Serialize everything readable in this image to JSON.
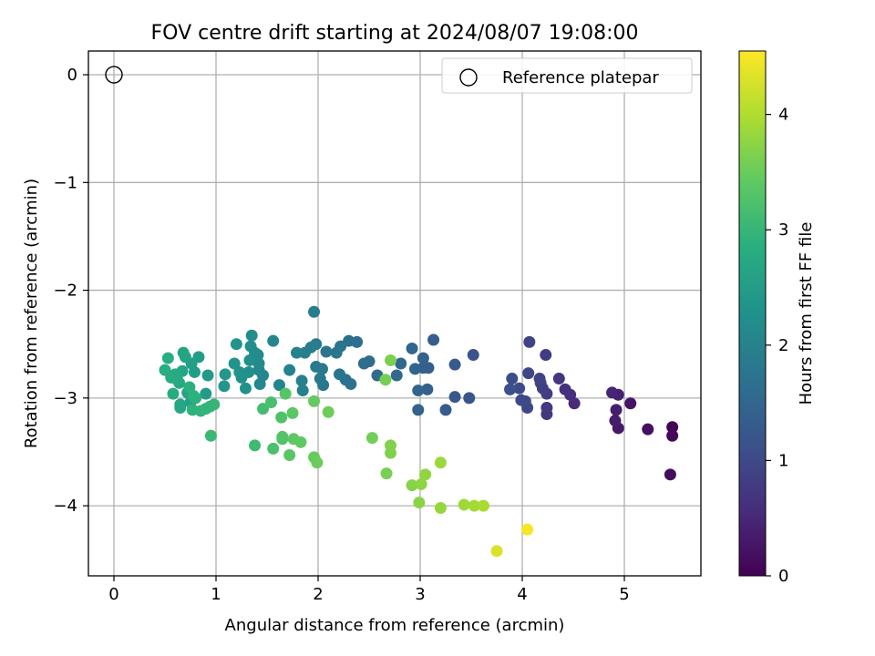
{
  "chart_data": {
    "type": "scatter",
    "title": "FOV centre drift starting at 2024/08/07 19:08:00",
    "xlabel": "Angular distance from reference (arcmin)",
    "ylabel": "Rotation from reference (arcmin)",
    "xlim": [
      -0.25,
      5.75
    ],
    "ylim": [
      -4.65,
      0.22
    ],
    "x_ticks": [
      0,
      1,
      2,
      3,
      4,
      5
    ],
    "y_ticks": [
      0,
      -1,
      -2,
      -3,
      -4
    ],
    "x_tick_labels": [
      "0",
      "1",
      "2",
      "3",
      "4",
      "5"
    ],
    "y_tick_labels": [
      "0",
      "−1",
      "−2",
      "−3",
      "−4"
    ],
    "grid": true,
    "legend": {
      "position": "top-right",
      "entries": [
        "Reference platepar"
      ]
    },
    "reference_point": {
      "x": 0,
      "y": 0,
      "marker": "open-circle"
    },
    "colorbar": {
      "label": "Hours from first FF file",
      "range": [
        0,
        4.55
      ],
      "ticks": [
        0,
        1,
        2,
        3,
        4
      ],
      "tick_labels": [
        "0",
        "1",
        "2",
        "3",
        "4"
      ],
      "colormap": "viridis"
    },
    "series": [
      {
        "points": [
          [
            5.47,
            -3.27,
            0.05
          ],
          [
            5.47,
            -3.35,
            0.1
          ],
          [
            5.45,
            -3.71,
            0.15
          ],
          [
            5.23,
            -3.29,
            0.2
          ],
          [
            5.06,
            -3.05,
            0.25
          ],
          [
            4.94,
            -3.28,
            0.3
          ],
          [
            4.91,
            -3.21,
            0.35
          ],
          [
            4.92,
            -3.11,
            0.38
          ],
          [
            4.94,
            -2.97,
            0.42
          ],
          [
            4.88,
            -2.95,
            0.46
          ],
          [
            4.51,
            -3.05,
            0.55
          ],
          [
            4.47,
            -2.97,
            0.6
          ],
          [
            4.42,
            -2.92,
            0.65
          ],
          [
            4.36,
            -2.82,
            0.7
          ],
          [
            4.24,
            -3.15,
            0.72
          ],
          [
            4.24,
            -3.09,
            0.76
          ],
          [
            4.24,
            -2.96,
            0.8
          ],
          [
            4.23,
            -2.6,
            0.82
          ],
          [
            4.2,
            -2.91,
            0.85
          ],
          [
            4.18,
            -2.86,
            0.88
          ],
          [
            4.17,
            -2.82,
            0.9
          ],
          [
            4.07,
            -2.48,
            0.92
          ],
          [
            4.06,
            -2.77,
            0.95
          ],
          [
            4.05,
            -3.09,
            0.98
          ],
          [
            4.03,
            -3.03,
            1.0
          ],
          [
            3.99,
            -3.02,
            1.02
          ],
          [
            3.97,
            -2.91,
            1.05
          ],
          [
            3.9,
            -2.82,
            1.07
          ],
          [
            3.88,
            -2.92,
            1.1
          ],
          [
            3.52,
            -2.6,
            1.15
          ],
          [
            3.48,
            -3.0,
            1.2
          ],
          [
            3.34,
            -2.99,
            1.25
          ],
          [
            3.34,
            -2.69,
            1.28
          ],
          [
            3.25,
            -3.11,
            1.3
          ],
          [
            3.13,
            -2.46,
            1.33
          ],
          [
            3.08,
            -2.72,
            1.36
          ],
          [
            3.07,
            -2.92,
            1.38
          ],
          [
            3.03,
            -2.72,
            1.4
          ],
          [
            3.03,
            -2.63,
            1.42
          ],
          [
            2.98,
            -3.11,
            1.44
          ],
          [
            2.98,
            -2.93,
            1.46
          ],
          [
            2.95,
            -2.73,
            1.48
          ],
          [
            2.92,
            -2.54,
            1.5
          ],
          [
            2.81,
            -2.68,
            1.53
          ],
          [
            2.77,
            -2.79,
            1.56
          ],
          [
            2.58,
            -2.79,
            1.58
          ],
          [
            2.5,
            -2.66,
            1.6
          ],
          [
            2.45,
            -2.68,
            1.62
          ],
          [
            2.38,
            -2.48,
            1.64
          ],
          [
            2.3,
            -2.47,
            1.66
          ],
          [
            2.32,
            -2.87,
            1.68
          ],
          [
            2.27,
            -2.83,
            1.7
          ],
          [
            2.22,
            -2.52,
            1.72
          ],
          [
            2.21,
            -2.78,
            1.74
          ],
          [
            2.18,
            -2.58,
            1.76
          ],
          [
            2.08,
            -2.57,
            1.78
          ],
          [
            2.05,
            -2.88,
            1.8
          ],
          [
            2.04,
            -2.73,
            1.82
          ],
          [
            2.02,
            -2.82,
            1.84
          ],
          [
            1.98,
            -2.71,
            1.86
          ],
          [
            1.98,
            -2.5,
            1.88
          ],
          [
            1.96,
            -2.2,
            1.9
          ],
          [
            1.93,
            -2.53,
            1.92
          ],
          [
            1.87,
            -2.58,
            1.94
          ],
          [
            1.85,
            -2.93,
            1.96
          ],
          [
            1.84,
            -2.84,
            1.98
          ],
          [
            1.79,
            -2.58,
            2.0
          ],
          [
            1.72,
            -2.74,
            2.02
          ],
          [
            1.62,
            -2.88,
            2.04
          ],
          [
            1.56,
            -2.47,
            2.06
          ],
          [
            1.46,
            -2.79,
            2.08
          ],
          [
            1.43,
            -2.87,
            2.1
          ],
          [
            1.42,
            -2.74,
            2.12
          ],
          [
            1.42,
            -2.68,
            2.14
          ],
          [
            1.41,
            -2.6,
            2.16
          ],
          [
            1.38,
            -2.58,
            2.18
          ],
          [
            1.35,
            -2.42,
            2.2
          ],
          [
            1.34,
            -2.52,
            2.22
          ],
          [
            1.33,
            -2.65,
            2.24
          ],
          [
            1.32,
            -2.76,
            2.26
          ],
          [
            1.29,
            -2.91,
            2.28
          ],
          [
            1.25,
            -2.81,
            2.3
          ],
          [
            1.23,
            -2.76,
            2.32
          ],
          [
            1.2,
            -2.5,
            2.34
          ],
          [
            1.18,
            -2.68,
            2.36
          ],
          [
            1.08,
            -2.89,
            2.38
          ],
          [
            1.09,
            -2.78,
            2.4
          ],
          [
            0.92,
            -2.79,
            2.45
          ],
          [
            0.9,
            -2.96,
            2.48
          ],
          [
            0.83,
            -2.62,
            2.5
          ],
          [
            0.79,
            -2.76,
            2.52
          ],
          [
            0.76,
            -2.68,
            2.55
          ],
          [
            0.75,
            -3.04,
            2.58
          ],
          [
            0.72,
            -2.95,
            2.6
          ],
          [
            0.7,
            -2.62,
            2.62
          ],
          [
            0.68,
            -2.58,
            2.64
          ],
          [
            0.67,
            -2.75,
            2.66
          ],
          [
            0.65,
            -3.06,
            2.68
          ],
          [
            0.65,
            -3.09,
            2.7
          ],
          [
            0.64,
            -2.86,
            2.72
          ],
          [
            0.62,
            -2.83,
            2.74
          ],
          [
            0.6,
            -2.78,
            2.76
          ],
          [
            0.58,
            -2.96,
            2.78
          ],
          [
            0.56,
            -2.81,
            2.8
          ],
          [
            0.53,
            -2.63,
            2.82
          ],
          [
            0.5,
            -2.74,
            2.84
          ],
          [
            0.74,
            -2.9,
            2.86
          ],
          [
            0.78,
            -2.98,
            2.88
          ],
          [
            0.8,
            -3.0,
            2.9
          ],
          [
            0.77,
            -3.11,
            2.92
          ],
          [
            0.85,
            -3.12,
            2.94
          ],
          [
            0.9,
            -3.1,
            2.96
          ],
          [
            0.94,
            -3.08,
            2.98
          ],
          [
            0.98,
            -3.06,
            3.0
          ],
          [
            0.95,
            -3.35,
            3.05
          ],
          [
            1.38,
            -3.44,
            3.1
          ],
          [
            1.46,
            -3.1,
            3.15
          ],
          [
            1.54,
            -3.04,
            3.18
          ],
          [
            1.56,
            -3.47,
            3.22
          ],
          [
            1.64,
            -3.18,
            3.25
          ],
          [
            1.65,
            -3.38,
            3.28
          ],
          [
            1.65,
            -3.36,
            3.3
          ],
          [
            1.68,
            -2.96,
            3.32
          ],
          [
            1.72,
            -3.53,
            3.35
          ],
          [
            1.75,
            -3.14,
            3.38
          ],
          [
            1.76,
            -3.38,
            3.4
          ],
          [
            1.83,
            -3.41,
            3.42
          ],
          [
            1.96,
            -3.03,
            3.45
          ],
          [
            1.96,
            -3.55,
            3.48
          ],
          [
            1.99,
            -3.6,
            3.5
          ],
          [
            2.1,
            -3.13,
            3.52
          ],
          [
            2.53,
            -3.37,
            3.55
          ],
          [
            2.66,
            -2.83,
            3.58
          ],
          [
            2.67,
            -3.7,
            3.6
          ],
          [
            2.71,
            -2.65,
            3.62
          ],
          [
            2.71,
            -3.51,
            3.65
          ],
          [
            2.71,
            -3.44,
            3.68
          ],
          [
            2.92,
            -3.81,
            3.7
          ],
          [
            2.99,
            -3.97,
            3.73
          ],
          [
            3.01,
            -3.8,
            3.76
          ],
          [
            3.05,
            -3.71,
            3.78
          ],
          [
            3.2,
            -4.02,
            3.82
          ],
          [
            3.2,
            -3.6,
            3.85
          ],
          [
            3.43,
            -3.99,
            3.88
          ],
          [
            3.53,
            -4.0,
            3.92
          ],
          [
            3.62,
            -4.0,
            3.95
          ],
          [
            3.75,
            -4.42,
            4.3
          ],
          [
            4.05,
            -4.22,
            4.5
          ]
        ]
      }
    ]
  }
}
